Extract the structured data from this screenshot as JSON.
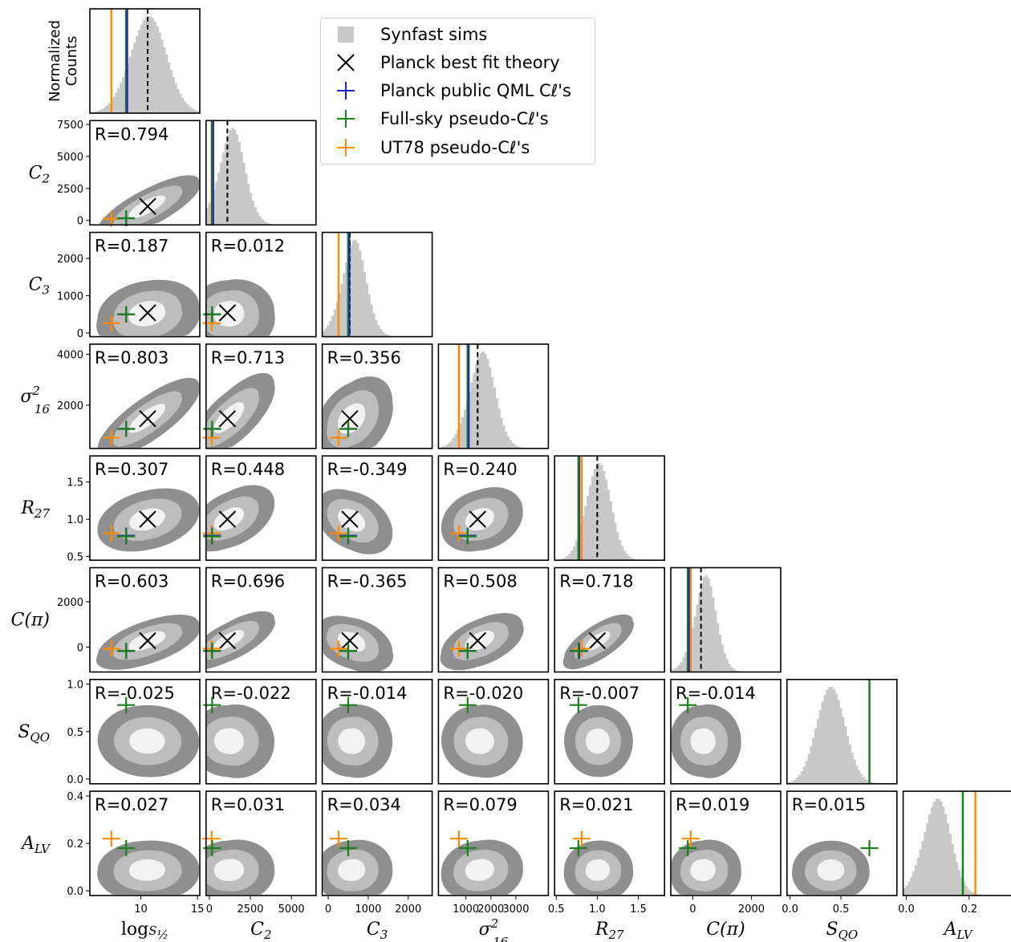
{
  "chart_data": {
    "type": "corner",
    "legend": [
      {
        "label": "Synfast sims",
        "marker": "square",
        "color": "#c8c8c8"
      },
      {
        "label": "Planck best fit theory",
        "marker": "x",
        "color": "#000000"
      },
      {
        "label": "Planck public QML Cℓ's",
        "marker": "plus",
        "color": "#1f1fcc"
      },
      {
        "label": "Full-sky pseudo-Cℓ's",
        "marker": "plus",
        "color": "#1b7f1b"
      },
      {
        "label": "UT78 pseudo-Cℓ's",
        "marker": "plus",
        "color": "#ff8c00"
      }
    ],
    "top_ylabel": [
      "Normalized",
      "Counts"
    ],
    "variables": [
      {
        "label": "log S½",
        "row_label": "",
        "range": [
          5.5,
          15.2
        ],
        "ticks": [
          10,
          15
        ],
        "tick_labels": [
          "10",
          "15"
        ],
        "sim_mean": 10.5,
        "sim_sd": 1.6,
        "skew": 0.3,
        "theory": 10.6,
        "qml": 8.7,
        "fullsky": 8.7,
        "ut78": 7.4
      },
      {
        "label": "C2",
        "row_label": "C2",
        "range": [
          -200,
          6500
        ],
        "ticks": [
          0,
          2500,
          5000
        ],
        "tick_labels": [
          "0",
          "2500",
          "5000"
        ],
        "row_ticks": [
          0,
          2500,
          5000,
          7500
        ],
        "row_tick_labels": [
          "0",
          "2500",
          "5000",
          "7500"
        ],
        "row_range": [
          -350,
          7800
        ],
        "sim_mean": 1100,
        "sim_sd": 850,
        "skew": 1.0,
        "theory": 1100,
        "qml": 170,
        "fullsky": 170,
        "ut78": 140
      },
      {
        "label": "C3",
        "row_label": "C3",
        "range": [
          -150,
          2600
        ],
        "ticks": [
          0,
          1000,
          2000
        ],
        "tick_labels": [
          "0",
          "1000",
          "2000"
        ],
        "row_ticks": [
          0,
          1000,
          2000
        ],
        "row_tick_labels": [
          "0",
          "1000",
          "2000"
        ],
        "row_range": [
          -100,
          2700
        ],
        "sim_mean": 550,
        "sim_sd": 320,
        "skew": 0.9,
        "theory": 540,
        "qml": 500,
        "fullsky": 500,
        "ut78": 260
      },
      {
        "label": "σ²₁₆",
        "row_label": "σ²₁₆",
        "range": [
          -100,
          4300
        ],
        "ticks": [
          1000,
          2000,
          3000
        ],
        "tick_labels": [
          "1000",
          "2000",
          "3000"
        ],
        "row_ticks": [
          2000,
          4000
        ],
        "row_tick_labels": [
          "2000",
          "4000"
        ],
        "row_range": [
          300,
          4400
        ],
        "sim_mean": 1500,
        "sim_sd": 550,
        "skew": 0.8,
        "theory": 1470,
        "qml": 1070,
        "fullsky": 1070,
        "ut78": 720
      },
      {
        "label": "R27",
        "row_label": "R27",
        "range": [
          0.48,
          1.82
        ],
        "ticks": [
          0.5,
          1.0,
          1.5
        ],
        "tick_labels": [
          "0.5",
          "1.0",
          "1.5"
        ],
        "row_ticks": [
          0.5,
          1.0,
          1.5
        ],
        "row_tick_labels": [
          "0.5",
          "1.0",
          "1.5"
        ],
        "row_range": [
          0.45,
          1.85
        ],
        "sim_mean": 1.0,
        "sim_sd": 0.15,
        "skew": 0.3,
        "theory": 1.0,
        "qml": 0.78,
        "fullsky": 0.77,
        "ut78": 0.81
      },
      {
        "label": "C(π)",
        "row_label": "C(π)",
        "range": [
          -750,
          3000
        ],
        "ticks": [
          0,
          2000
        ],
        "tick_labels": [
          "0",
          "2000"
        ],
        "row_ticks": [
          0,
          2000
        ],
        "row_tick_labels": [
          "0",
          "2000"
        ],
        "row_range": [
          -1100,
          3500
        ],
        "sim_mean": 300,
        "sim_sd": 400,
        "skew": 1.0,
        "theory": 280,
        "qml": -170,
        "fullsky": -170,
        "ut78": -70
      },
      {
        "label": "SQO",
        "row_label": "SQO",
        "range": [
          -0.03,
          1.05
        ],
        "ticks": [
          0.0,
          0.5,
          1.0
        ],
        "tick_labels": [
          "0.0",
          "0.5",
          "1.0"
        ],
        "xticks": [
          0.0,
          0.5
        ],
        "xtick_labels": [
          "0.0",
          "0.5"
        ],
        "row_ticks": [
          0.0,
          0.5,
          1.0
        ],
        "row_tick_labels": [
          "0.0",
          "0.5",
          "1.0"
        ],
        "row_range": [
          -0.05,
          1.05
        ],
        "sim_mean": 0.4,
        "sim_sd": 0.14,
        "skew": 0,
        "theory": null,
        "qml": null,
        "fullsky": 0.78,
        "ut78": null
      },
      {
        "label": "ALV",
        "row_label": "ALV",
        "range": [
          -0.01,
          0.34
        ],
        "ticks": [
          0.0,
          0.2
        ],
        "tick_labels": [
          "0.0",
          "0.2"
        ],
        "row_ticks": [
          0.0,
          0.2,
          0.4
        ],
        "row_tick_labels": [
          "0.0",
          "0.2",
          "0.4"
        ],
        "row_range": [
          -0.02,
          0.42
        ],
        "sim_mean": 0.09,
        "sim_sd": 0.045,
        "skew": 0.5,
        "theory": null,
        "qml": null,
        "fullsky": 0.18,
        "ut78": 0.22
      }
    ],
    "correlations": [
      {
        "row": 1,
        "col": 0,
        "R": "R=0.794"
      },
      {
        "row": 2,
        "col": 0,
        "R": "R=0.187"
      },
      {
        "row": 2,
        "col": 1,
        "R": "R=0.012"
      },
      {
        "row": 3,
        "col": 0,
        "R": "R=0.803"
      },
      {
        "row": 3,
        "col": 1,
        "R": "R=0.713"
      },
      {
        "row": 3,
        "col": 2,
        "R": "R=0.356"
      },
      {
        "row": 4,
        "col": 0,
        "R": "R=0.307"
      },
      {
        "row": 4,
        "col": 1,
        "R": "R=0.448"
      },
      {
        "row": 4,
        "col": 2,
        "R": "R=-0.349"
      },
      {
        "row": 4,
        "col": 3,
        "R": "R=0.240"
      },
      {
        "row": 5,
        "col": 0,
        "R": "R=0.603"
      },
      {
        "row": 5,
        "col": 1,
        "R": "R=0.696"
      },
      {
        "row": 5,
        "col": 2,
        "R": "R=-0.365"
      },
      {
        "row": 5,
        "col": 3,
        "R": "R=0.508"
      },
      {
        "row": 5,
        "col": 4,
        "R": "R=0.718"
      },
      {
        "row": 6,
        "col": 0,
        "R": "R=-0.025"
      },
      {
        "row": 6,
        "col": 1,
        "R": "R=-0.022"
      },
      {
        "row": 6,
        "col": 2,
        "R": "R=-0.014"
      },
      {
        "row": 6,
        "col": 3,
        "R": "R=-0.020"
      },
      {
        "row": 6,
        "col": 4,
        "R": "R=-0.007"
      },
      {
        "row": 6,
        "col": 5,
        "R": "R=-0.014"
      },
      {
        "row": 7,
        "col": 0,
        "R": "R=0.027"
      },
      {
        "row": 7,
        "col": 1,
        "R": "R=0.031"
      },
      {
        "row": 7,
        "col": 2,
        "R": "R=0.034"
      },
      {
        "row": 7,
        "col": 3,
        "R": "R=0.079"
      },
      {
        "row": 7,
        "col": 4,
        "R": "R=0.021"
      },
      {
        "row": 7,
        "col": 5,
        "R": "R=0.019"
      },
      {
        "row": 7,
        "col": 6,
        "R": "R=0.015"
      }
    ]
  }
}
